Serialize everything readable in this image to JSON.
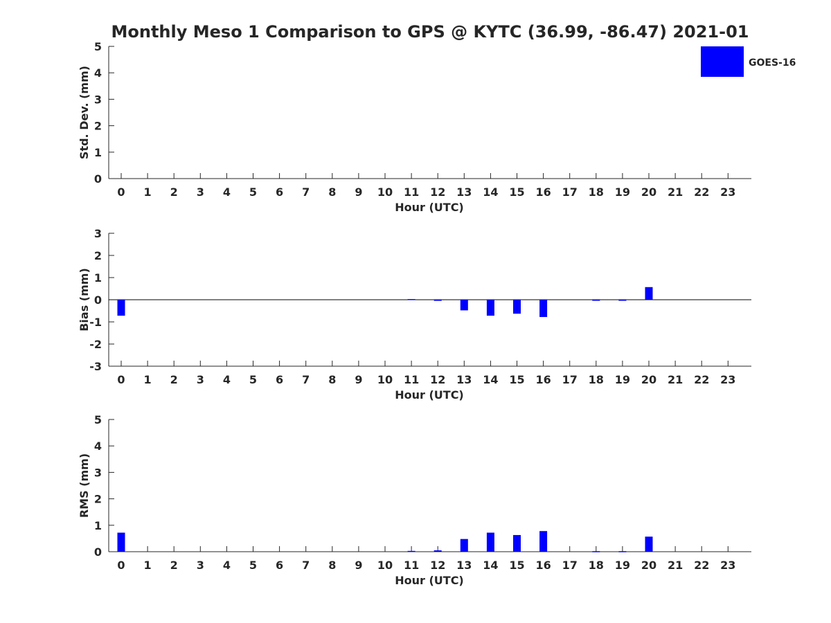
{
  "title": "Monthly Meso 1 Comparison to GPS @ KYTC (36.99, -86.47) 2021-01",
  "legend": {
    "label": "GOES-16",
    "color": "#0000ff",
    "placement": "top-right"
  },
  "colors": {
    "bar": "#0000ff",
    "axis": "#262626",
    "zero_line": "#000000"
  },
  "chart_data": [
    {
      "type": "bar",
      "ylabel": "Std. Dev. (mm)",
      "xlabel": "Hour (UTC)",
      "ylim": [
        0,
        5
      ],
      "yticks": [
        0,
        1,
        2,
        3,
        4,
        5
      ],
      "x": [
        0,
        1,
        2,
        3,
        4,
        5,
        6,
        7,
        8,
        9,
        10,
        11,
        12,
        13,
        14,
        15,
        16,
        17,
        18,
        19,
        20,
        21,
        22,
        23
      ],
      "xtick_labels": [
        "0",
        "1",
        "2",
        "3",
        "4",
        "5",
        "6",
        "7",
        "8",
        "9",
        "10",
        "11",
        "12",
        "13",
        "14",
        "15",
        "16",
        "17",
        "18",
        "19",
        "20",
        "21",
        "22",
        "23"
      ],
      "series": [
        {
          "name": "GOES-16",
          "values": [
            0,
            0,
            0,
            0,
            0,
            0,
            0,
            0,
            0,
            0,
            0,
            0,
            0,
            0,
            0,
            0,
            0,
            0,
            0,
            0,
            0,
            0,
            0,
            0
          ]
        }
      ],
      "grid": false
    },
    {
      "type": "bar",
      "ylabel": "Bias (mm)",
      "xlabel": "Hour (UTC)",
      "ylim": [
        -3,
        3
      ],
      "yticks": [
        -3,
        -2,
        -1,
        0,
        1,
        2,
        3
      ],
      "x": [
        0,
        1,
        2,
        3,
        4,
        5,
        6,
        7,
        8,
        9,
        10,
        11,
        12,
        13,
        14,
        15,
        16,
        17,
        18,
        19,
        20,
        21,
        22,
        23
      ],
      "xtick_labels": [
        "0",
        "1",
        "2",
        "3",
        "4",
        "5",
        "6",
        "7",
        "8",
        "9",
        "10",
        "11",
        "12",
        "13",
        "14",
        "15",
        "16",
        "17",
        "18",
        "19",
        "20",
        "21",
        "22",
        "23"
      ],
      "zero_line": true,
      "series": [
        {
          "name": "GOES-16",
          "values": [
            -0.72,
            0,
            0,
            0,
            0,
            0,
            0,
            0,
            0,
            0,
            0,
            0.03,
            -0.05,
            -0.48,
            -0.72,
            -0.63,
            -0.78,
            0,
            -0.02,
            -0.02,
            0.57,
            0,
            0,
            0
          ]
        }
      ],
      "grid": false
    },
    {
      "type": "bar",
      "ylabel": "RMS (mm)",
      "xlabel": "Hour (UTC)",
      "ylim": [
        0,
        5
      ],
      "yticks": [
        0,
        1,
        2,
        3,
        4,
        5
      ],
      "x": [
        0,
        1,
        2,
        3,
        4,
        5,
        6,
        7,
        8,
        9,
        10,
        11,
        12,
        13,
        14,
        15,
        16,
        17,
        18,
        19,
        20,
        21,
        22,
        23
      ],
      "xtick_labels": [
        "0",
        "1",
        "2",
        "3",
        "4",
        "5",
        "6",
        "7",
        "8",
        "9",
        "10",
        "11",
        "12",
        "13",
        "14",
        "15",
        "16",
        "17",
        "18",
        "19",
        "20",
        "21",
        "22",
        "23"
      ],
      "series": [
        {
          "name": "GOES-16",
          "values": [
            0.72,
            0,
            0,
            0,
            0,
            0,
            0,
            0,
            0,
            0,
            0,
            0.03,
            0.05,
            0.48,
            0.72,
            0.63,
            0.78,
            0,
            0.02,
            0.02,
            0.57,
            0,
            0,
            0
          ]
        }
      ],
      "grid": false
    }
  ]
}
